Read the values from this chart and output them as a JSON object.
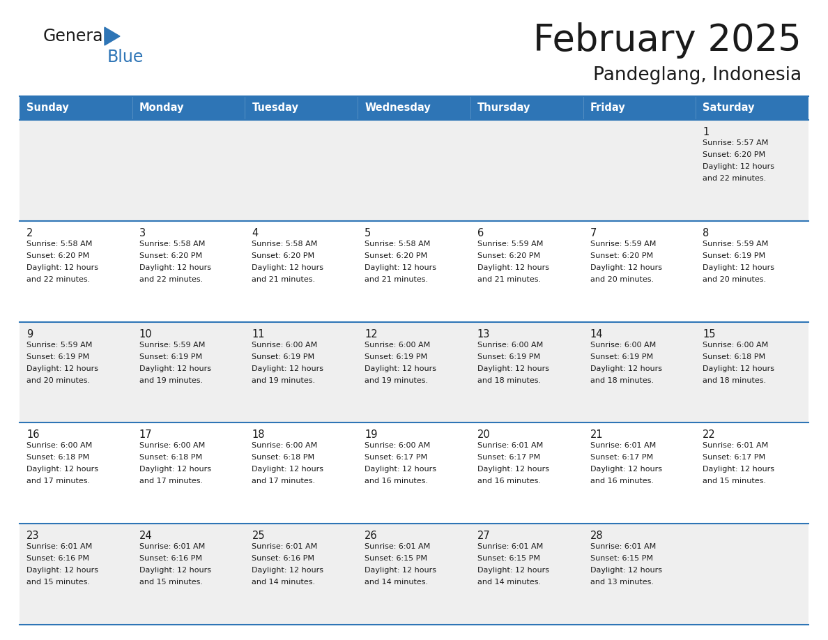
{
  "title": "February 2025",
  "subtitle": "Pandeglang, Indonesia",
  "header_bg": "#2E75B6",
  "header_text_color": "#FFFFFF",
  "cell_bg_row0": "#EFEFEF",
  "cell_bg_row1": "#FFFFFF",
  "cell_bg_row2": "#EFEFEF",
  "cell_bg_row3": "#FFFFFF",
  "cell_bg_row4": "#EFEFEF",
  "cell_border_color": "#2E75B6",
  "day_headers": [
    "Sunday",
    "Monday",
    "Tuesday",
    "Wednesday",
    "Thursday",
    "Friday",
    "Saturday"
  ],
  "title_color": "#1a1a1a",
  "subtitle_color": "#1a1a1a",
  "logo_general_color": "#1a1a1a",
  "logo_blue_color": "#2E75B6",
  "logo_triangle_color": "#2E75B6",
  "calendar_data": [
    [
      {
        "day": "",
        "sunrise": "",
        "sunset": "",
        "daylight": ""
      },
      {
        "day": "",
        "sunrise": "",
        "sunset": "",
        "daylight": ""
      },
      {
        "day": "",
        "sunrise": "",
        "sunset": "",
        "daylight": ""
      },
      {
        "day": "",
        "sunrise": "",
        "sunset": "",
        "daylight": ""
      },
      {
        "day": "",
        "sunrise": "",
        "sunset": "",
        "daylight": ""
      },
      {
        "day": "",
        "sunrise": "",
        "sunset": "",
        "daylight": ""
      },
      {
        "day": "1",
        "sunrise": "5:57 AM",
        "sunset": "6:20 PM",
        "daylight": "12 hours and 22 minutes."
      }
    ],
    [
      {
        "day": "2",
        "sunrise": "5:58 AM",
        "sunset": "6:20 PM",
        "daylight": "12 hours and 22 minutes."
      },
      {
        "day": "3",
        "sunrise": "5:58 AM",
        "sunset": "6:20 PM",
        "daylight": "12 hours and 22 minutes."
      },
      {
        "day": "4",
        "sunrise": "5:58 AM",
        "sunset": "6:20 PM",
        "daylight": "12 hours and 21 minutes."
      },
      {
        "day": "5",
        "sunrise": "5:58 AM",
        "sunset": "6:20 PM",
        "daylight": "12 hours and 21 minutes."
      },
      {
        "day": "6",
        "sunrise": "5:59 AM",
        "sunset": "6:20 PM",
        "daylight": "12 hours and 21 minutes."
      },
      {
        "day": "7",
        "sunrise": "5:59 AM",
        "sunset": "6:20 PM",
        "daylight": "12 hours and 20 minutes."
      },
      {
        "day": "8",
        "sunrise": "5:59 AM",
        "sunset": "6:19 PM",
        "daylight": "12 hours and 20 minutes."
      }
    ],
    [
      {
        "day": "9",
        "sunrise": "5:59 AM",
        "sunset": "6:19 PM",
        "daylight": "12 hours and 20 minutes."
      },
      {
        "day": "10",
        "sunrise": "5:59 AM",
        "sunset": "6:19 PM",
        "daylight": "12 hours and 19 minutes."
      },
      {
        "day": "11",
        "sunrise": "6:00 AM",
        "sunset": "6:19 PM",
        "daylight": "12 hours and 19 minutes."
      },
      {
        "day": "12",
        "sunrise": "6:00 AM",
        "sunset": "6:19 PM",
        "daylight": "12 hours and 19 minutes."
      },
      {
        "day": "13",
        "sunrise": "6:00 AM",
        "sunset": "6:19 PM",
        "daylight": "12 hours and 18 minutes."
      },
      {
        "day": "14",
        "sunrise": "6:00 AM",
        "sunset": "6:19 PM",
        "daylight": "12 hours and 18 minutes."
      },
      {
        "day": "15",
        "sunrise": "6:00 AM",
        "sunset": "6:18 PM",
        "daylight": "12 hours and 18 minutes."
      }
    ],
    [
      {
        "day": "16",
        "sunrise": "6:00 AM",
        "sunset": "6:18 PM",
        "daylight": "12 hours and 17 minutes."
      },
      {
        "day": "17",
        "sunrise": "6:00 AM",
        "sunset": "6:18 PM",
        "daylight": "12 hours and 17 minutes."
      },
      {
        "day": "18",
        "sunrise": "6:00 AM",
        "sunset": "6:18 PM",
        "daylight": "12 hours and 17 minutes."
      },
      {
        "day": "19",
        "sunrise": "6:00 AM",
        "sunset": "6:17 PM",
        "daylight": "12 hours and 16 minutes."
      },
      {
        "day": "20",
        "sunrise": "6:01 AM",
        "sunset": "6:17 PM",
        "daylight": "12 hours and 16 minutes."
      },
      {
        "day": "21",
        "sunrise": "6:01 AM",
        "sunset": "6:17 PM",
        "daylight": "12 hours and 16 minutes."
      },
      {
        "day": "22",
        "sunrise": "6:01 AM",
        "sunset": "6:17 PM",
        "daylight": "12 hours and 15 minutes."
      }
    ],
    [
      {
        "day": "23",
        "sunrise": "6:01 AM",
        "sunset": "6:16 PM",
        "daylight": "12 hours and 15 minutes."
      },
      {
        "day": "24",
        "sunrise": "6:01 AM",
        "sunset": "6:16 PM",
        "daylight": "12 hours and 15 minutes."
      },
      {
        "day": "25",
        "sunrise": "6:01 AM",
        "sunset": "6:16 PM",
        "daylight": "12 hours and 14 minutes."
      },
      {
        "day": "26",
        "sunrise": "6:01 AM",
        "sunset": "6:15 PM",
        "daylight": "12 hours and 14 minutes."
      },
      {
        "day": "27",
        "sunrise": "6:01 AM",
        "sunset": "6:15 PM",
        "daylight": "12 hours and 14 minutes."
      },
      {
        "day": "28",
        "sunrise": "6:01 AM",
        "sunset": "6:15 PM",
        "daylight": "12 hours and 13 minutes."
      },
      {
        "day": "",
        "sunrise": "",
        "sunset": "",
        "daylight": ""
      }
    ]
  ]
}
